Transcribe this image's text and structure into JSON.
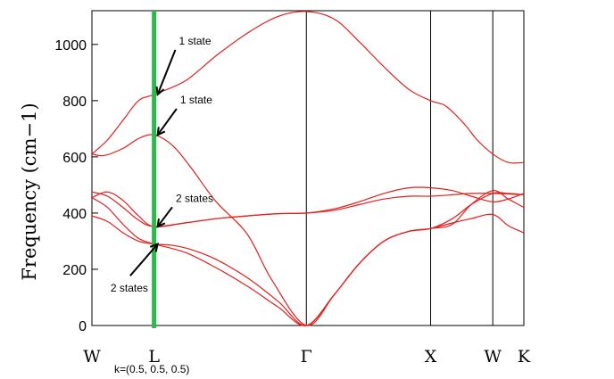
{
  "chart_data": {
    "type": "line",
    "ylabel": "Frequency (cm−1)",
    "ylim": [
      0,
      1120
    ],
    "yticks": [
      "0",
      "200",
      "400",
      "600",
      "800",
      "1000"
    ],
    "ytick_values": [
      0,
      200,
      400,
      600,
      800,
      1000
    ],
    "high_symmetry_points": [
      {
        "label": "W",
        "x": 0
      },
      {
        "label": "L",
        "x": 1
      },
      {
        "label": "Γ",
        "x": 3.45
      },
      {
        "label": "X",
        "x": 5.45
      },
      {
        "label": "W",
        "x": 6.45
      },
      {
        "label": "K",
        "x": 6.95
      }
    ],
    "vertical_lines_at": [
      3.45,
      5.45,
      6.45
    ],
    "highlight_x": 1,
    "highlight_color": "#2db84d",
    "line_color": "#e0201c",
    "x_note": "k=(0.5, 0.5, 0.5)",
    "series": [
      {
        "x": [
          0,
          0.25,
          0.5,
          0.75,
          1,
          1.5,
          2,
          2.5,
          3,
          3.45,
          3.9,
          4.3,
          4.7,
          5.1,
          5.45,
          5.7,
          6.0,
          6.2,
          6.45,
          6.7,
          6.95
        ],
        "values": [
          610,
          660,
          730,
          800,
          822,
          870,
          960,
          1040,
          1100,
          1117,
          1090,
          1010,
          920,
          840,
          800,
          780,
          715,
          660,
          610,
          580,
          580
        ]
      },
      {
        "x": [
          0,
          0.2,
          0.5,
          0.75,
          1,
          1.3,
          1.6,
          2,
          2.5,
          2.9,
          3.45,
          3.9,
          4.3,
          4.7,
          5.1,
          5.45,
          5.8,
          6.1,
          6.45,
          6.7,
          6.95
        ],
        "values": [
          610,
          605,
          630,
          665,
          678,
          640,
          560,
          440,
          325,
          160,
          0,
          110,
          220,
          300,
          335,
          345,
          365,
          380,
          395,
          355,
          330
        ]
      },
      {
        "x": [
          0,
          0.25,
          0.5,
          0.75,
          1,
          1.5,
          2,
          2.5,
          3,
          3.45,
          3.9,
          4.3,
          4.7,
          5.1,
          5.45,
          5.8,
          6.1,
          6.45,
          6.7,
          6.95
        ],
        "values": [
          475,
          460,
          420,
          375,
          352,
          365,
          380,
          390,
          398,
          400,
          410,
          430,
          450,
          460,
          460,
          465,
          470,
          470,
          468,
          465
        ]
      },
      {
        "x": [
          0,
          0.25,
          0.5,
          0.75,
          1,
          1.5,
          2,
          2.5,
          3,
          3.45,
          3.9,
          4.3,
          4.7,
          5.1,
          5.45,
          5.8,
          6.1,
          6.45,
          6.7,
          6.95
        ],
        "values": [
          455,
          475,
          445,
          390,
          352,
          365,
          380,
          390,
          398,
          400,
          415,
          440,
          470,
          490,
          490,
          480,
          460,
          440,
          450,
          470
        ]
      },
      {
        "x": [
          0,
          0.25,
          0.5,
          0.75,
          1,
          1.3,
          1.6,
          2,
          2.5,
          3,
          3.45,
          3.9,
          4.3,
          4.7,
          5.1,
          5.45,
          5.8,
          6.1,
          6.45,
          6.7,
          6.95
        ],
        "values": [
          390,
          370,
          330,
          300,
          290,
          285,
          270,
          235,
          170,
          85,
          0,
          110,
          220,
          300,
          335,
          345,
          380,
          430,
          470,
          470,
          465
        ]
      },
      {
        "x": [
          0,
          0.25,
          0.5,
          0.75,
          1,
          1.5,
          2,
          2.5,
          3,
          3.45,
          3.9,
          4.3,
          4.7,
          5.1,
          5.45,
          5.8,
          6.1,
          6.45,
          6.7,
          6.95
        ],
        "values": [
          455,
          420,
          360,
          310,
          290,
          260,
          205,
          140,
          65,
          0,
          110,
          220,
          300,
          335,
          345,
          360,
          430,
          480,
          450,
          420
        ]
      }
    ],
    "annotations": [
      {
        "text": "1 state",
        "target": [
          1,
          822
        ],
        "label_at": [
          1.4,
          1000
        ]
      },
      {
        "text": "1 state",
        "target": [
          1,
          678
        ],
        "label_at": [
          1.42,
          790
        ]
      },
      {
        "text": "2 states",
        "target": [
          1,
          352
        ],
        "label_at": [
          1.35,
          440
        ]
      },
      {
        "text": "2 states",
        "target": [
          1,
          290
        ],
        "label_at": [
          0.3,
          120
        ]
      }
    ]
  }
}
